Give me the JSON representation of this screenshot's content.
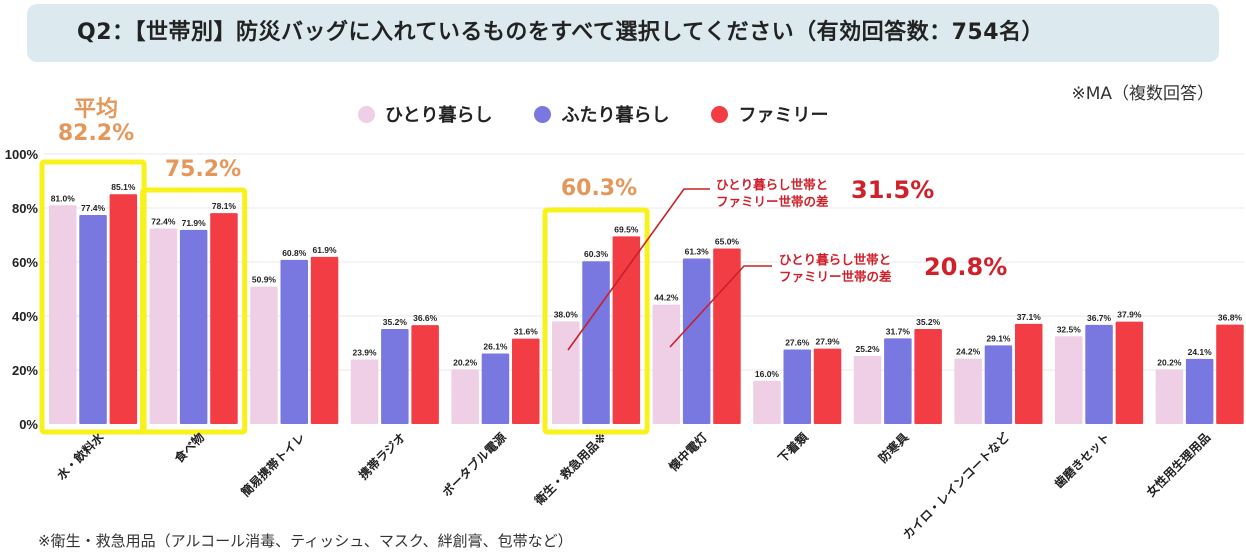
{
  "header": {
    "title": "Q2：【世帯別】防災バッグに入れているものをすべて選択してください（有効回答数：754名）",
    "ma_note": "※MA（複数回答）"
  },
  "legend": [
    {
      "label": "ひとり暮らし",
      "color": "#efcfe6"
    },
    {
      "label": "ふたり暮らし",
      "color": "#7878e0"
    },
    {
      "label": "ファミリー",
      "color": "#f23d45"
    }
  ],
  "highlights": {
    "avg1_label": "平均",
    "avg1_value": "82.2%",
    "avg2_value": "75.2%",
    "avg3_value": "60.3%",
    "box_color": "#f7f21c",
    "avg_color": "#e5975a"
  },
  "annotations": [
    {
      "line1": "ひとり暮らし世帯と",
      "line2": "ファミリー世帯の差",
      "value": "31.5%"
    },
    {
      "line1": "ひとり暮らし世帯と",
      "line2": "ファミリー世帯の差",
      "value": "20.8%"
    }
  ],
  "footnote": "※衛生・救急用品（アルコール消毒、ティッシュ、マスク、絆創膏、包帯など）",
  "chart_data": {
    "type": "bar",
    "title": "Q2：【世帯別】防災バッグに入れているものをすべて選択してください（有効回答数：754名）",
    "xlabel": "",
    "ylabel": "",
    "ylim": [
      0,
      100
    ],
    "yticks": [
      "0%",
      "20%",
      "40%",
      "60%",
      "80%",
      "100%"
    ],
    "ytick_values": [
      0,
      20,
      40,
      60,
      80,
      100
    ],
    "grid": true,
    "legend_position": "top-center",
    "categories": [
      "水・飲料水",
      "食べ物",
      "簡易携帯トイレ",
      "携帯ラジオ",
      "ポータブル電源",
      "衛生・救急用品※",
      "懐中電灯",
      "下着類",
      "防寒具",
      "カイロ・レインコートなど",
      "歯磨きセット",
      "女性用生理用品"
    ],
    "series": [
      {
        "name": "ひとり暮らし",
        "values": [
          81.0,
          72.4,
          50.9,
          23.9,
          20.2,
          38.0,
          44.2,
          16.0,
          25.2,
          24.2,
          32.5,
          20.2
        ],
        "labels": [
          "81.0%",
          "72.4%",
          "50.9%",
          "23.9%",
          "20.2%",
          "38.0%",
          "44.2%",
          "16.0%",
          "25.2%",
          "24.2%",
          "32.5%",
          "20.2%"
        ]
      },
      {
        "name": "ふたり暮らし",
        "values": [
          77.4,
          71.9,
          60.8,
          35.2,
          26.1,
          60.3,
          61.3,
          27.6,
          31.7,
          29.1,
          36.7,
          24.1
        ],
        "labels": [
          "77.4%",
          "71.9%",
          "60.8%",
          "35.2%",
          "26.1%",
          "60.3%",
          "61.3%",
          "27.6%",
          "31.7%",
          "29.1%",
          "36.7%",
          "24.1%"
        ]
      },
      {
        "name": "ファミリー",
        "values": [
          85.1,
          78.1,
          61.9,
          36.6,
          31.6,
          69.5,
          65.0,
          27.9,
          35.2,
          37.1,
          37.9,
          36.8
        ],
        "labels": [
          "85.1%",
          "78.1%",
          "61.9%",
          "36.6%",
          "31.6%",
          "69.5%",
          "65.0%",
          "27.9%",
          "35.2%",
          "37.1%",
          "37.9%",
          "36.8%"
        ]
      }
    ]
  }
}
